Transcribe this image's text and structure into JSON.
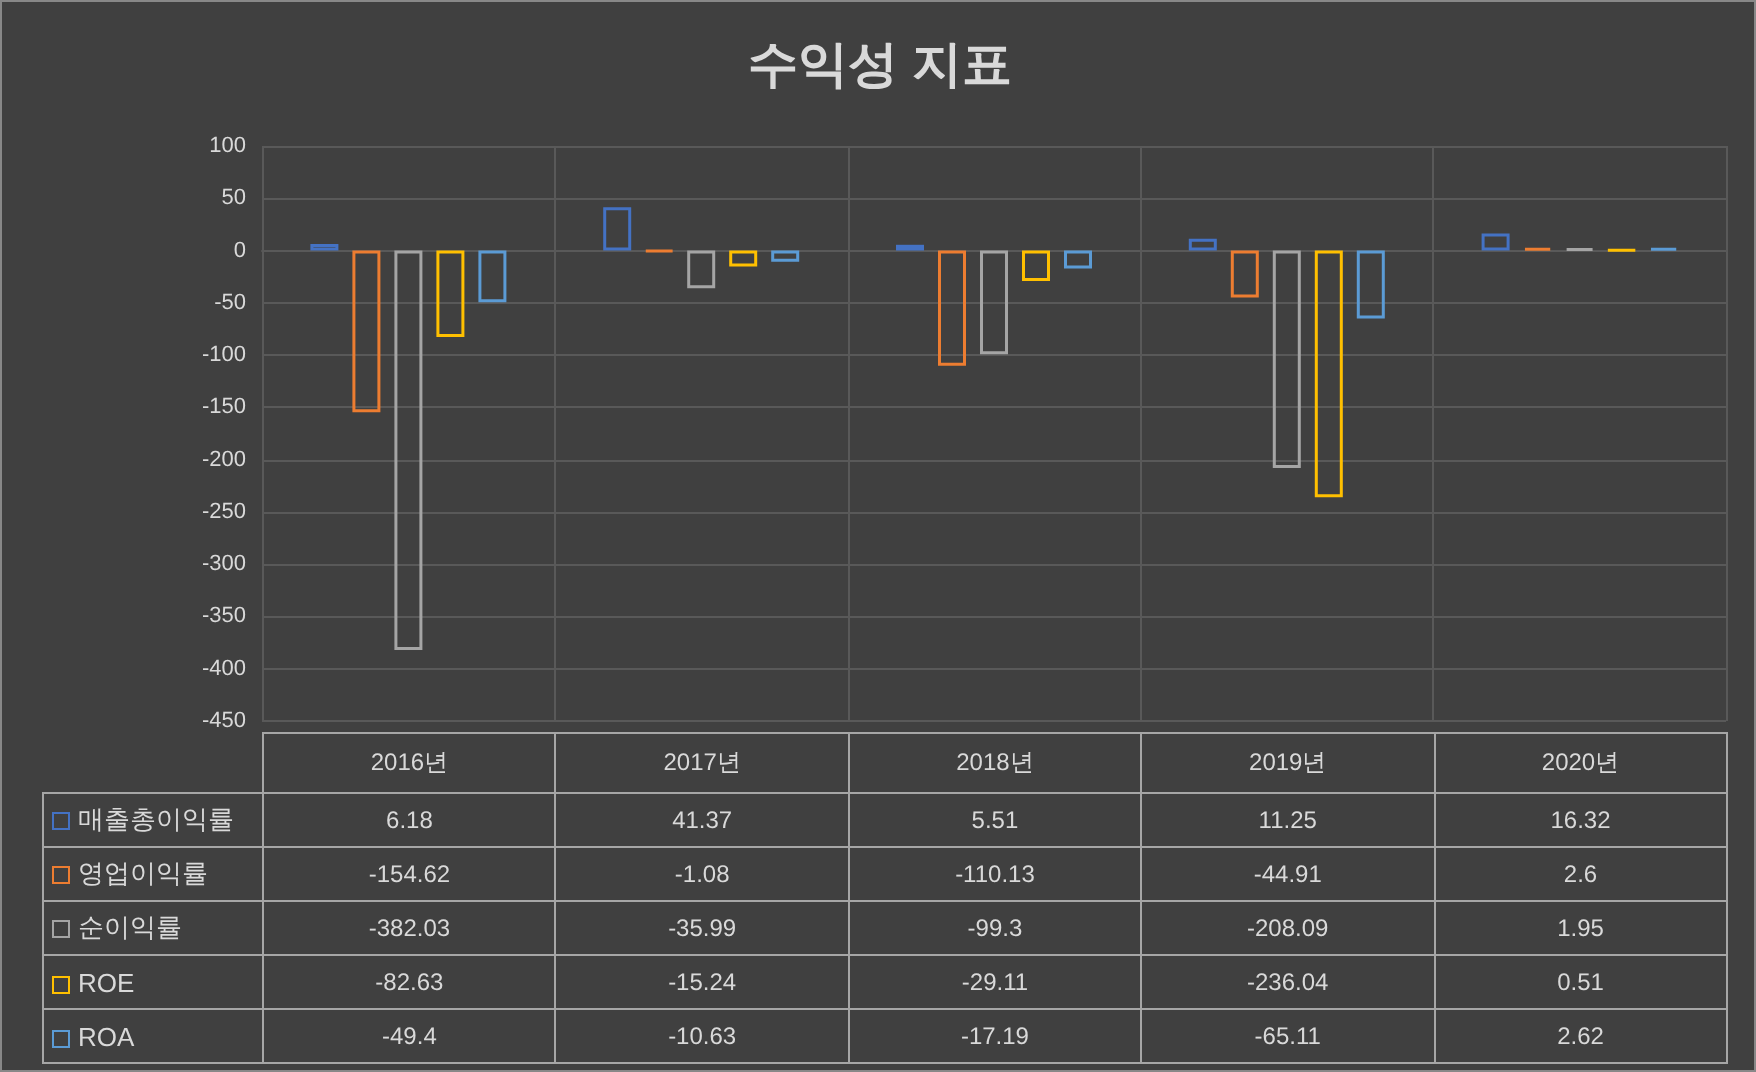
{
  "chart_data": {
    "type": "bar",
    "title": "수익성 지표",
    "categories": [
      "2016년",
      "2017년",
      "2018년",
      "2019년",
      "2020년"
    ],
    "series": [
      {
        "name": "매출총이익률",
        "color": "#4472c4",
        "values": [
          6.18,
          41.37,
          5.51,
          11.25,
          16.32
        ]
      },
      {
        "name": "영업이익률",
        "color": "#ed7d31",
        "values": [
          -154.62,
          -1.08,
          -110.13,
          -44.91,
          2.6
        ]
      },
      {
        "name": "순이익률",
        "color": "#a5a5a5",
        "values": [
          -382.03,
          -35.99,
          -99.3,
          -208.09,
          1.95
        ]
      },
      {
        "name": "ROE",
        "color": "#ffc000",
        "values": [
          -82.63,
          -15.24,
          -29.11,
          -236.04,
          0.51
        ]
      },
      {
        "name": "ROA",
        "color": "#5b9bd5",
        "values": [
          -49.4,
          -10.63,
          -17.19,
          -65.11,
          2.62
        ]
      }
    ],
    "ylim": [
      -450,
      100
    ],
    "yticks": [
      -450,
      -400,
      -350,
      -300,
      -250,
      -200,
      -150,
      -100,
      -50,
      0,
      50,
      100
    ],
    "grid": true,
    "legend": "bottom",
    "data_labels": true
  }
}
